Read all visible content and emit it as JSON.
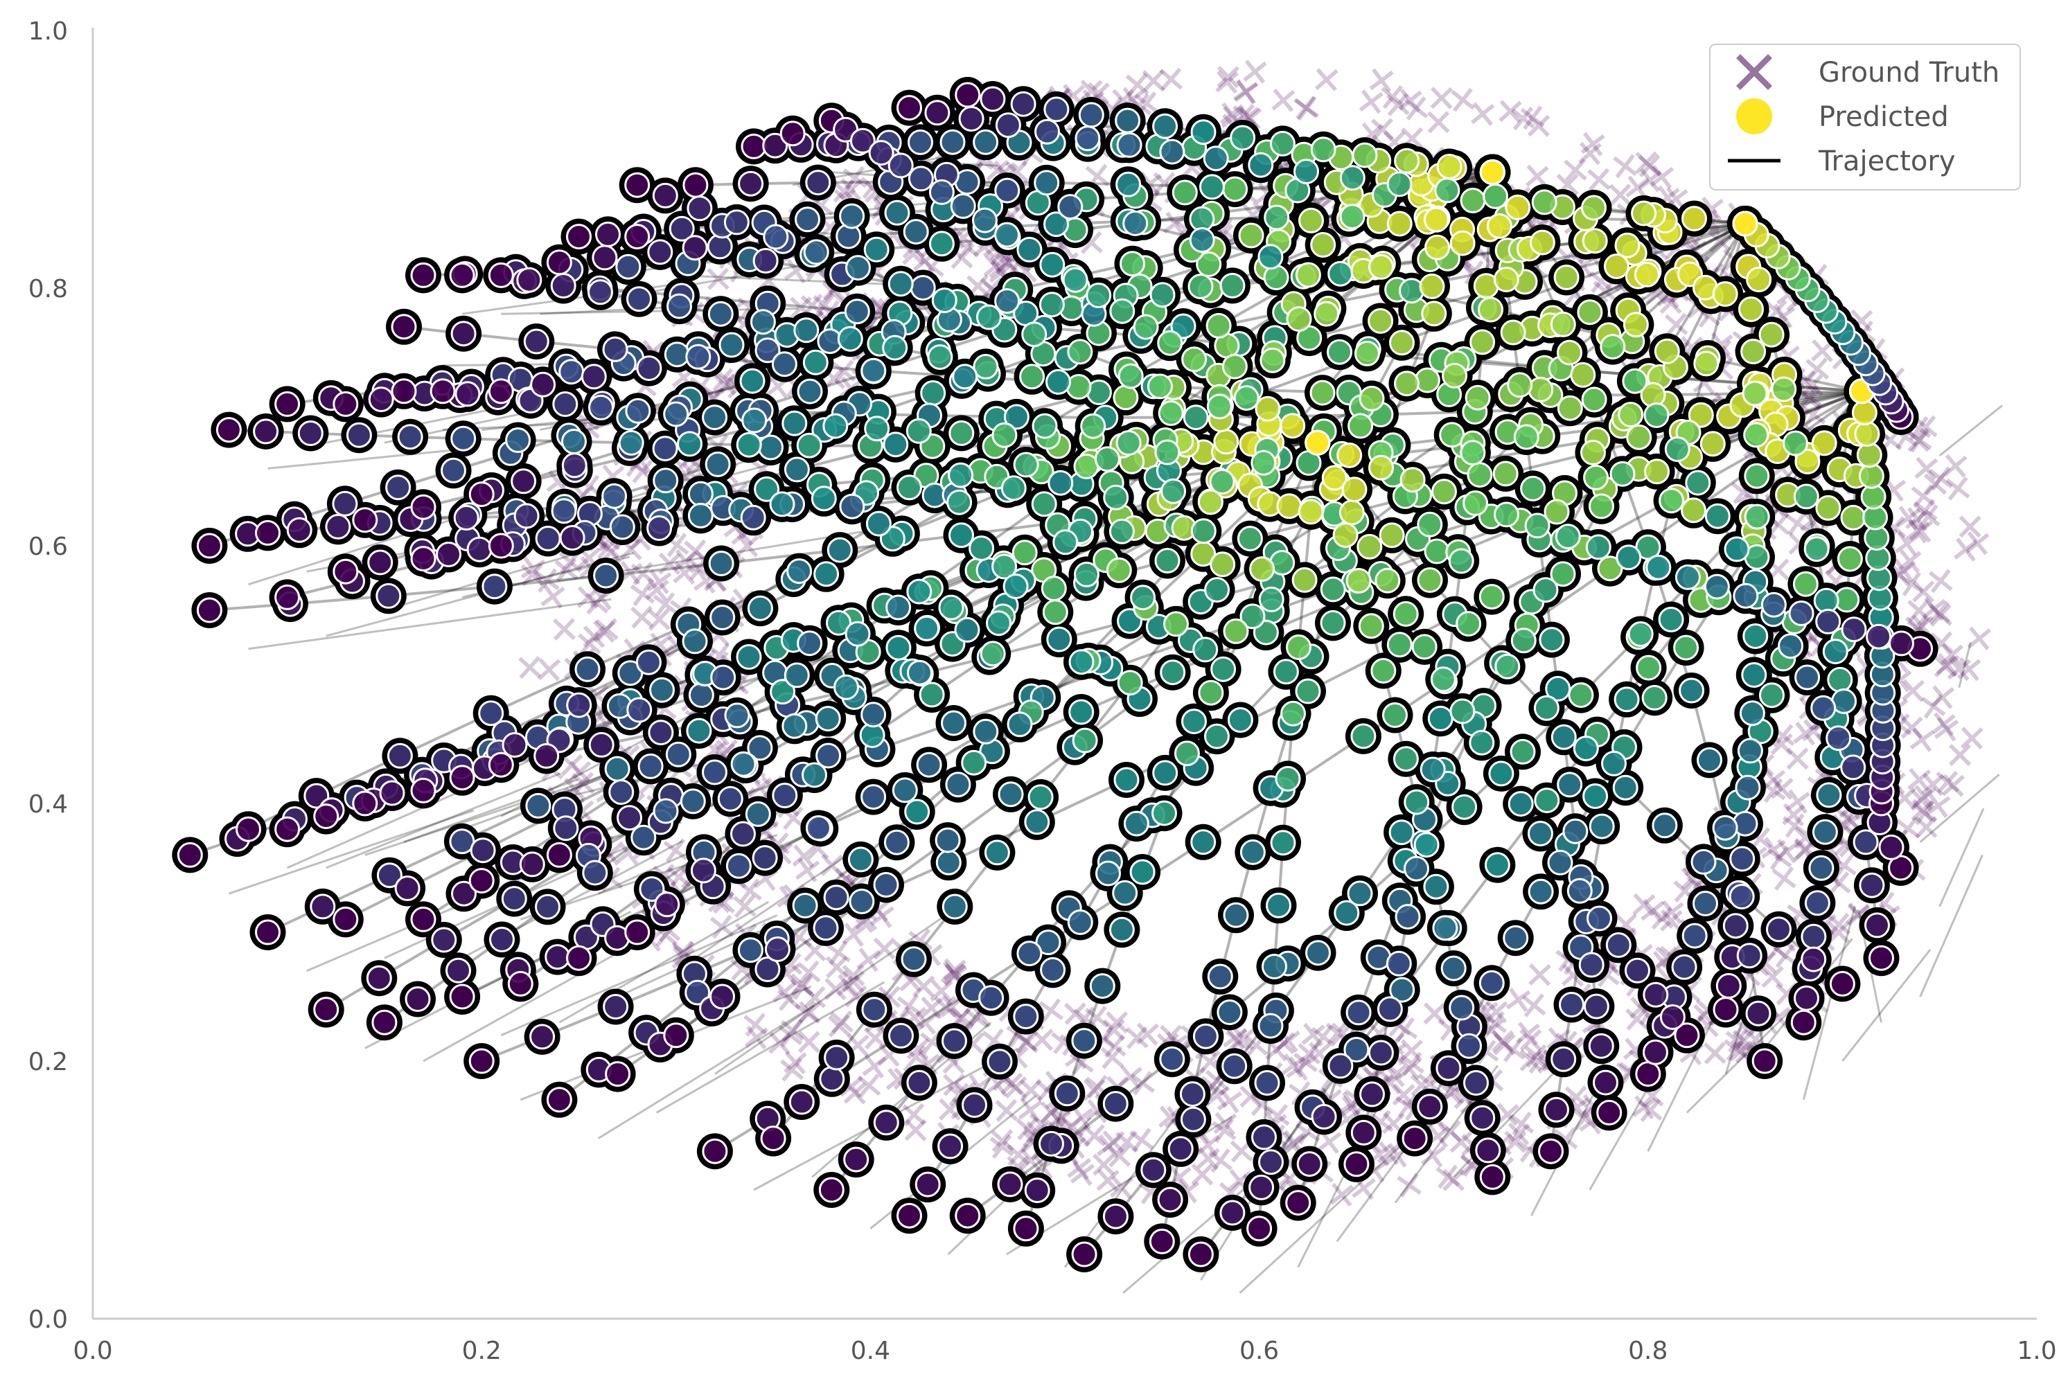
{
  "chart_data": {
    "type": "scatter",
    "title": "",
    "xlabel": "",
    "ylabel": "",
    "xlim": [
      0.0,
      1.0
    ],
    "ylim": [
      0.0,
      1.0
    ],
    "grid": false,
    "colormap": "viridis",
    "x_ticks": [
      "0.0",
      "0.2",
      "0.4",
      "0.6",
      "0.8",
      "1.0"
    ],
    "y_ticks": [
      "0.0",
      "0.2",
      "0.4",
      "0.6",
      "0.8",
      "1.0"
    ],
    "legend": {
      "placement": "top-right",
      "entries": [
        "Ground Truth",
        "Predicted",
        "Trajectory"
      ]
    },
    "series": [
      {
        "name": "Ground Truth",
        "marker": "X",
        "color": "#440154",
        "shape": "ellipse",
        "center": [
          0.6,
          0.53
        ],
        "radii": [
          0.37,
          0.43
        ]
      },
      {
        "name": "Predicted",
        "marker": "o",
        "color": "viridis",
        "start_points": [
          [
            0.06,
            0.6
          ],
          [
            0.06,
            0.55
          ],
          [
            0.09,
            0.61
          ],
          [
            0.1,
            0.56
          ],
          [
            0.13,
            0.58
          ],
          [
            0.14,
            0.62
          ],
          [
            0.17,
            0.59
          ],
          [
            0.17,
            0.63
          ],
          [
            0.2,
            0.64
          ],
          [
            0.21,
            0.6
          ],
          [
            0.07,
            0.69
          ],
          [
            0.1,
            0.71
          ],
          [
            0.13,
            0.71
          ],
          [
            0.16,
            0.72
          ],
          [
            0.18,
            0.72
          ],
          [
            0.21,
            0.72
          ],
          [
            0.17,
            0.81
          ],
          [
            0.19,
            0.81
          ],
          [
            0.21,
            0.81
          ],
          [
            0.24,
            0.82
          ],
          [
            0.25,
            0.84
          ],
          [
            0.28,
            0.84
          ],
          [
            0.28,
            0.88
          ],
          [
            0.31,
            0.88
          ],
          [
            0.34,
            0.91
          ],
          [
            0.36,
            0.92
          ],
          [
            0.38,
            0.93
          ],
          [
            0.42,
            0.94
          ],
          [
            0.45,
            0.95
          ],
          [
            0.16,
            0.77
          ],
          [
            0.05,
            0.36
          ],
          [
            0.08,
            0.38
          ],
          [
            0.1,
            0.38
          ],
          [
            0.12,
            0.39
          ],
          [
            0.14,
            0.4
          ],
          [
            0.17,
            0.41
          ],
          [
            0.19,
            0.42
          ],
          [
            0.21,
            0.43
          ],
          [
            0.09,
            0.3
          ],
          [
            0.13,
            0.31
          ],
          [
            0.17,
            0.31
          ],
          [
            0.2,
            0.34
          ],
          [
            0.24,
            0.36
          ],
          [
            0.12,
            0.24
          ],
          [
            0.15,
            0.23
          ],
          [
            0.19,
            0.25
          ],
          [
            0.22,
            0.26
          ],
          [
            0.25,
            0.28
          ],
          [
            0.28,
            0.3
          ],
          [
            0.2,
            0.2
          ],
          [
            0.24,
            0.17
          ],
          [
            0.27,
            0.19
          ],
          [
            0.3,
            0.22
          ],
          [
            0.32,
            0.13
          ],
          [
            0.35,
            0.14
          ],
          [
            0.38,
            0.1
          ],
          [
            0.42,
            0.08
          ],
          [
            0.45,
            0.08
          ],
          [
            0.48,
            0.07
          ],
          [
            0.51,
            0.05
          ],
          [
            0.55,
            0.06
          ],
          [
            0.57,
            0.05
          ],
          [
            0.6,
            0.07
          ],
          [
            0.62,
            0.09
          ],
          [
            0.65,
            0.12
          ],
          [
            0.68,
            0.14
          ],
          [
            0.72,
            0.11
          ],
          [
            0.75,
            0.13
          ],
          [
            0.78,
            0.16
          ],
          [
            0.8,
            0.19
          ],
          [
            0.82,
            0.22
          ],
          [
            0.84,
            0.24
          ],
          [
            0.86,
            0.2
          ],
          [
            0.88,
            0.23
          ],
          [
            0.9,
            0.26
          ],
          [
            0.92,
            0.28
          ],
          [
            0.93,
            0.35
          ],
          [
            0.92,
            0.4
          ],
          [
            0.94,
            0.52
          ],
          [
            0.93,
            0.7
          ]
        ],
        "end_points": [
          [
            0.72,
            0.89
          ],
          [
            0.81,
            0.86
          ],
          [
            0.83,
            0.87
          ],
          [
            0.87,
            0.87
          ],
          [
            0.89,
            0.86
          ],
          [
            0.91,
            0.86
          ],
          [
            0.88,
            0.78
          ],
          [
            0.91,
            0.72
          ],
          [
            0.86,
            0.62
          ],
          [
            0.8,
            0.64
          ],
          [
            0.78,
            0.63
          ],
          [
            0.74,
            0.62
          ],
          [
            0.71,
            0.61
          ],
          [
            0.67,
            0.6
          ],
          [
            0.63,
            0.68
          ],
          [
            0.61,
            0.75
          ],
          [
            0.65,
            0.74
          ],
          [
            0.69,
            0.75
          ],
          [
            0.74,
            0.75
          ],
          [
            0.79,
            0.81
          ],
          [
            0.83,
            0.84
          ],
          [
            0.85,
            0.85
          ],
          [
            0.78,
            0.82
          ],
          [
            0.74,
            0.8
          ],
          [
            0.7,
            0.82
          ],
          [
            0.66,
            0.84
          ],
          [
            0.62,
            0.86
          ],
          [
            0.58,
            0.87
          ]
        ]
      },
      {
        "name": "Trajectory",
        "marker": "line",
        "color": "#000000"
      }
    ]
  },
  "colors": {
    "ground_truth": "#440154",
    "predicted_legend": "#fde725",
    "trajectory": "#000000",
    "axis": "#cccccc",
    "tick_text": "#555555"
  }
}
